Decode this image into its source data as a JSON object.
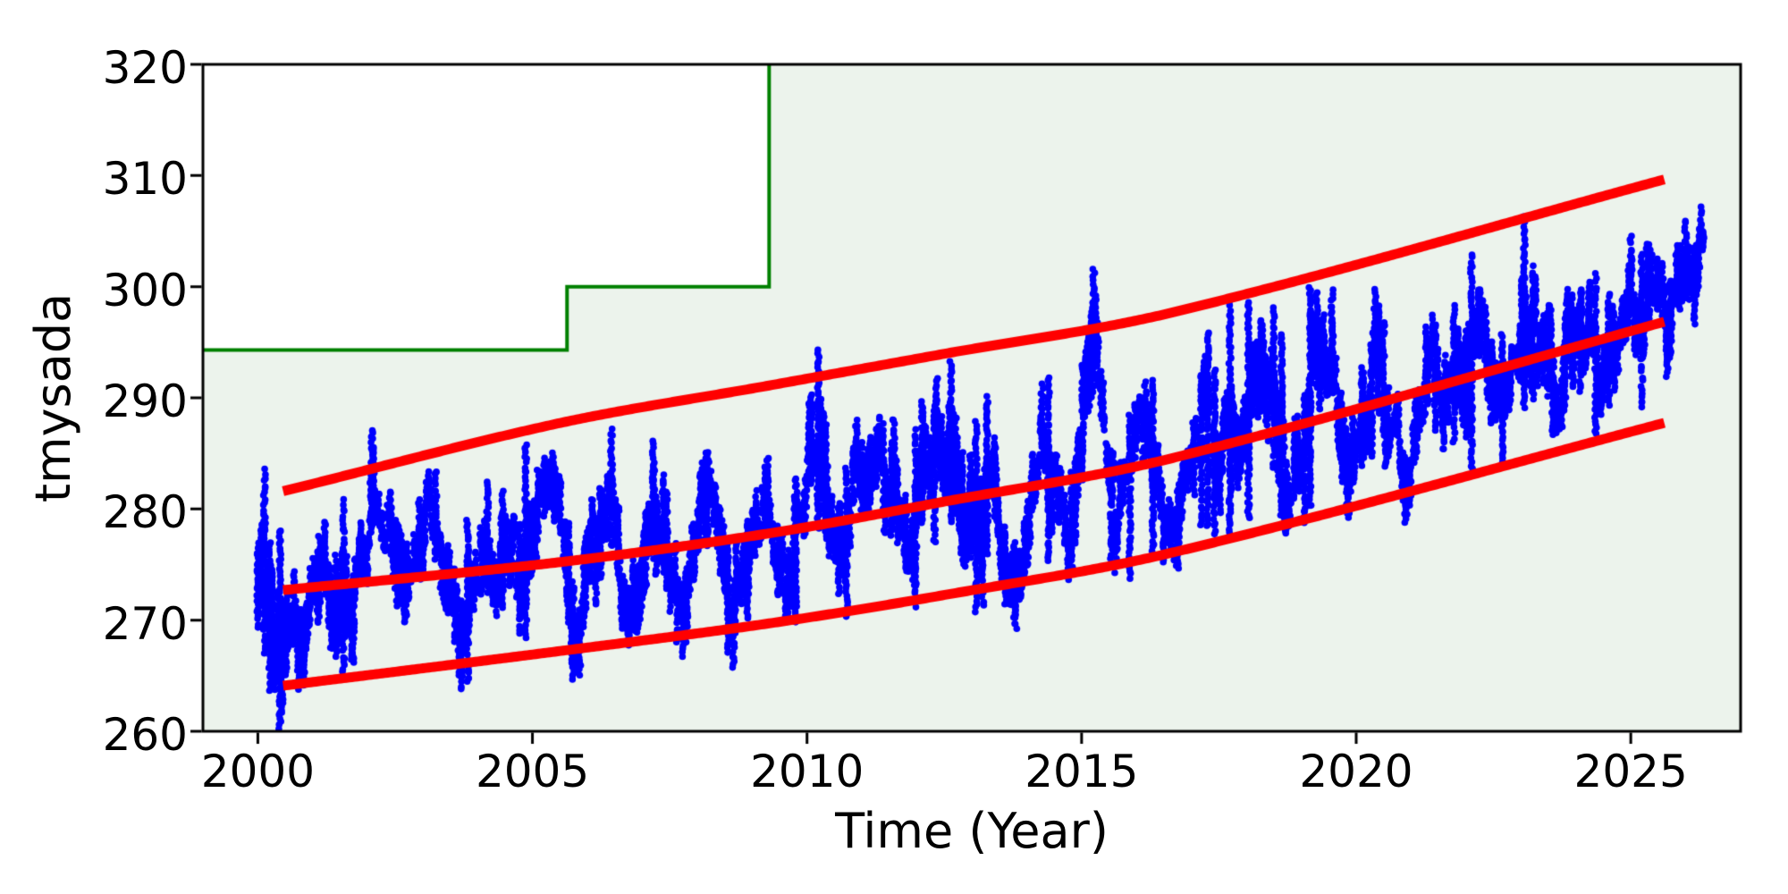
{
  "chart_data": {
    "type": "scatter",
    "title": "",
    "xlabel": "Time (Year)",
    "ylabel": "tmysada",
    "xlim": [
      1999,
      2027
    ],
    "ylim": [
      260,
      320
    ],
    "xticks": [
      2000,
      2005,
      2010,
      2015,
      2020,
      2025
    ],
    "yticks": [
      260,
      270,
      280,
      290,
      300,
      310,
      320
    ],
    "grid": false,
    "legend": "none",
    "axis_color": "#000000",
    "background_color": "#ffffff",
    "step_series": {
      "name": "threshold-step",
      "color": "#008000",
      "line_width": 4,
      "fill_below_color": "#ecf3ec",
      "points": [
        [
          1999.0,
          294.3
        ],
        [
          2005.63,
          294.3
        ],
        [
          2005.63,
          300.0
        ],
        [
          2009.31,
          300.0
        ],
        [
          2009.31,
          320.0
        ]
      ],
      "fill_extends_to_xmax": true
    },
    "quantile_curves": [
      {
        "name": "upper-bound",
        "color": "#ff0000",
        "line_width": 11,
        "points": [
          [
            2000.46,
            281.6
          ],
          [
            2005.47,
            287.7
          ],
          [
            2009.3,
            291.1
          ],
          [
            2012.43,
            293.9
          ],
          [
            2016.67,
            297.7
          ],
          [
            2025.65,
            309.7
          ]
        ]
      },
      {
        "name": "median",
        "color": "#ff0000",
        "line_width": 11,
        "points": [
          [
            2000.46,
            272.7
          ],
          [
            2005.47,
            275.2
          ],
          [
            2009.3,
            277.8
          ],
          [
            2012.43,
            280.6
          ],
          [
            2016.67,
            284.6
          ],
          [
            2025.65,
            296.9
          ]
        ]
      },
      {
        "name": "lower-bound",
        "color": "#ff0000",
        "line_width": 11,
        "points": [
          [
            2000.46,
            264.1
          ],
          [
            2005.47,
            267.2
          ],
          [
            2009.3,
            269.7
          ],
          [
            2012.43,
            272.2
          ],
          [
            2016.67,
            276.1
          ],
          [
            2025.65,
            287.8
          ]
        ]
      }
    ],
    "scatter": {
      "name": "observations",
      "color": "#0000ff",
      "marker_radius_px": 3.8,
      "t_start": 2000.0,
      "t_end": 2026.32,
      "t_step": 0.02,
      "seed": 1337,
      "seasonal_amplitude": 3.8,
      "column_spread": 1.7,
      "gap_probability": 0.15,
      "value_start_mean": 271,
      "value_end_mean": 297,
      "value_min": 263.5,
      "value_max": 309
    }
  }
}
